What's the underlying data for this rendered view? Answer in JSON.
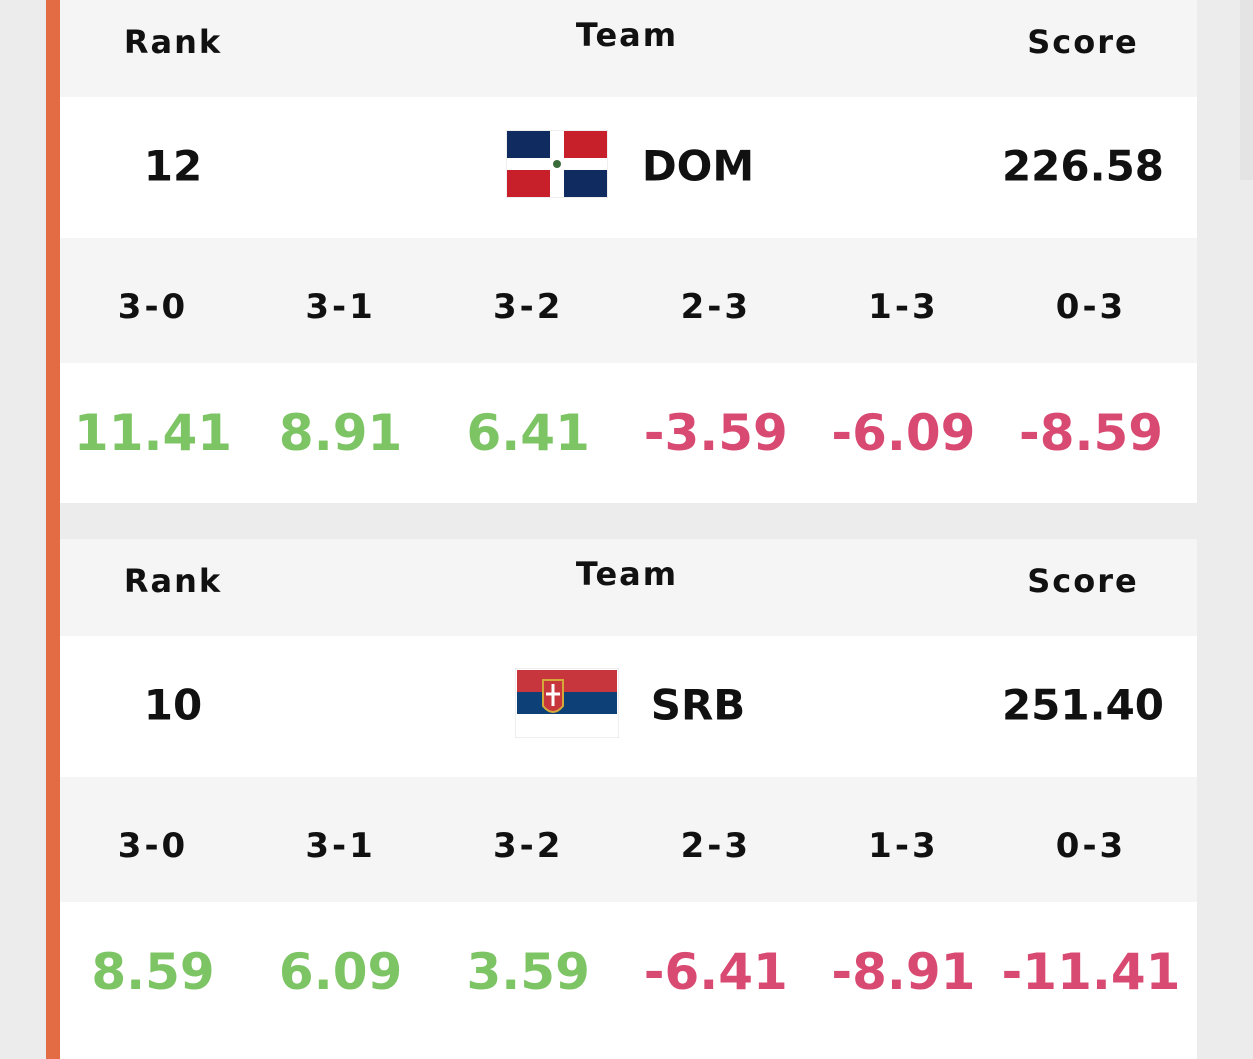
{
  "cards": [
    {
      "header": {
        "rank": "Rank",
        "team": "Team",
        "score": "Score"
      },
      "rank": "12",
      "team": "DOM",
      "score": "226.58",
      "results": [
        {
          "label": "3-0",
          "value": "11.41"
        },
        {
          "label": "3-1",
          "value": "8.91"
        },
        {
          "label": "3-2",
          "value": "6.41"
        },
        {
          "label": "2-3",
          "value": "-3.59"
        },
        {
          "label": "1-3",
          "value": "-6.09"
        },
        {
          "label": "0-3",
          "value": "-8.59"
        }
      ]
    },
    {
      "header": {
        "rank": "Rank",
        "team": "Team",
        "score": "Score"
      },
      "rank": "10",
      "team": "SRB",
      "score": "251.40",
      "results": [
        {
          "label": "3-0",
          "value": "8.59"
        },
        {
          "label": "3-1",
          "value": "6.09"
        },
        {
          "label": "3-2",
          "value": "3.59"
        },
        {
          "label": "2-3",
          "value": "-6.41"
        },
        {
          "label": "1-3",
          "value": "-8.91"
        },
        {
          "label": "0-3",
          "value": "-11.41"
        }
      ]
    }
  ]
}
